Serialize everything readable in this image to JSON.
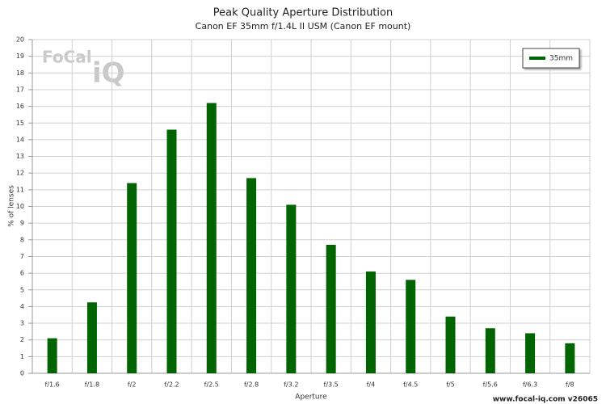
{
  "chart_data": {
    "type": "bar",
    "title": "Peak Quality Aperture Distribution",
    "subtitle": "Canon EF 35mm f/1.4L II USM (Canon EF mount)",
    "x_label": "Aperture",
    "y_label": "% of lenses",
    "categories": [
      "f/1.6",
      "f/1.8",
      "f/2",
      "f/2.2",
      "f/2.5",
      "f/2.8",
      "f/3.2",
      "f/3.5",
      "f/4",
      "f/4.5",
      "f/5",
      "f/5.6",
      "f/6.3",
      "f/8"
    ],
    "series": [
      {
        "name": "35mm",
        "color": "#006400",
        "values": [
          2.1,
          4.25,
          11.4,
          14.6,
          16.2,
          11.7,
          10.1,
          7.7,
          6.1,
          5.6,
          3.4,
          2.7,
          2.4,
          1.8
        ]
      }
    ],
    "ylim": [
      0,
      20
    ],
    "yticks": [
      0,
      1,
      2,
      3,
      4,
      5,
      6,
      7,
      8,
      9,
      10,
      11,
      12,
      13,
      14,
      15,
      16,
      17,
      18,
      19,
      20
    ],
    "grid": true,
    "legend": "top-right",
    "logo": [
      "FoCal",
      "iQ"
    ],
    "footer": "www.focal-iq.com  v26065"
  }
}
